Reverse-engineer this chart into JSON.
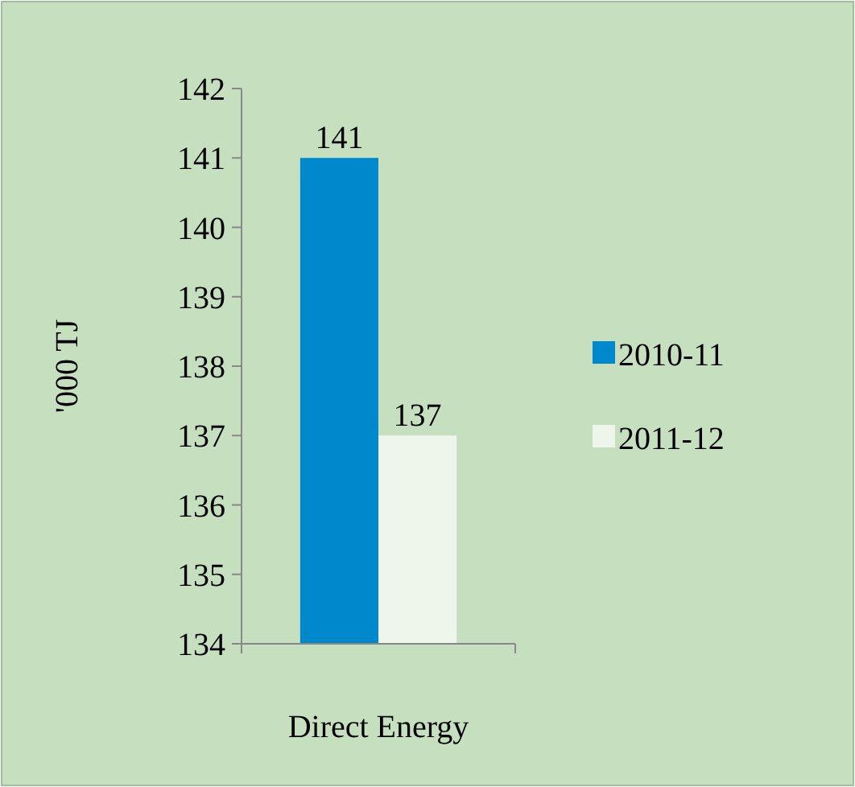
{
  "chart_data": {
    "type": "bar",
    "categories": [
      "Direct Energy"
    ],
    "ylabel": "'000 TJ",
    "series": [
      {
        "name": "2010-11",
        "color": "#0088cc",
        "values": [
          141
        ]
      },
      {
        "name": "2011-12",
        "color": "#eef5ea",
        "values": [
          137
        ]
      }
    ],
    "ylim": [
      134,
      142
    ],
    "yticks": [
      134,
      135,
      136,
      137,
      138,
      139,
      140,
      141,
      142
    ],
    "data_labels": true,
    "legend": "right",
    "grid": false
  }
}
